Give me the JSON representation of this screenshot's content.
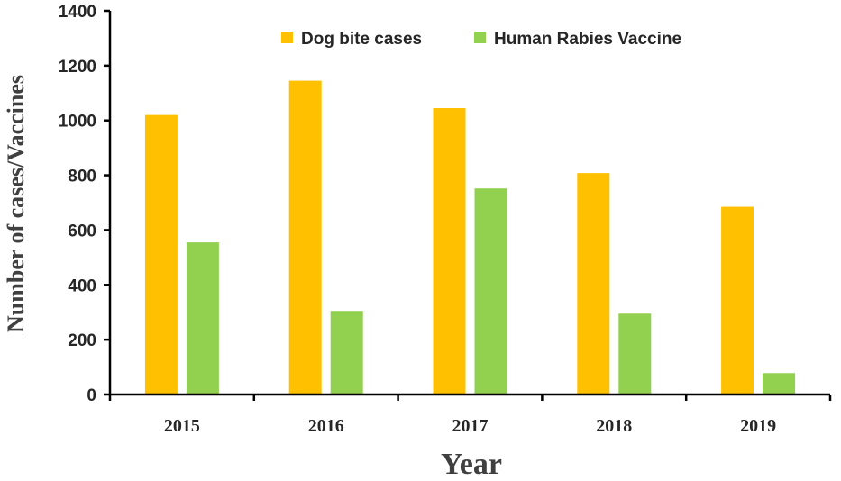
{
  "chart_data": {
    "type": "bar",
    "title": "",
    "xlabel": "Year",
    "ylabel": "Number of cases/Vaccines",
    "categories": [
      "2015",
      "2016",
      "2017",
      "2018",
      "2019"
    ],
    "series": [
      {
        "name": "Dog bite cases",
        "color": "#FFC000",
        "values": [
          1020,
          1145,
          1045,
          808,
          685
        ]
      },
      {
        "name": "Human Rabies Vaccine",
        "color": "#92D050",
        "values": [
          555,
          305,
          752,
          295,
          78
        ]
      }
    ],
    "ylim": [
      0,
      1400
    ],
    "yticks": [
      "0",
      "200",
      "400",
      "600",
      "800",
      "1000",
      "1200",
      "1400"
    ],
    "grid": false,
    "legend": "top-right"
  }
}
